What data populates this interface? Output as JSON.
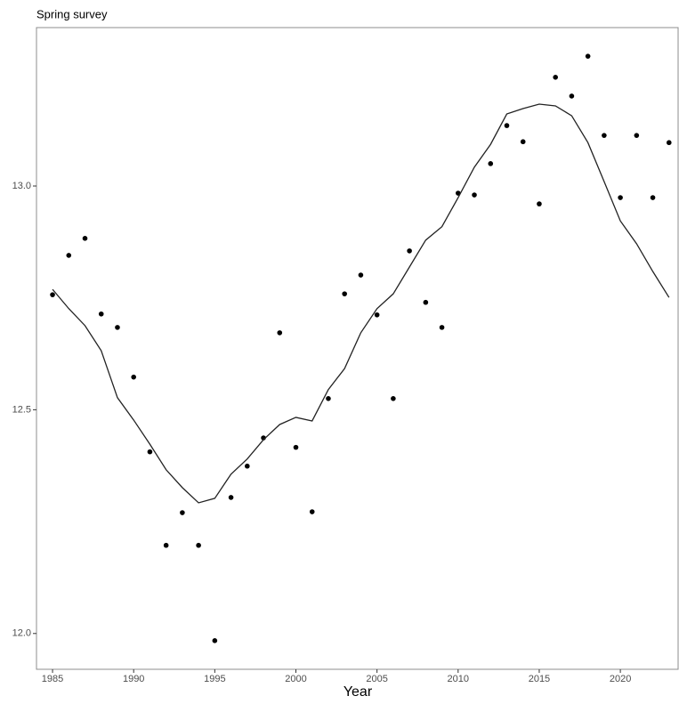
{
  "chart_data": {
    "type": "scatter",
    "title": "Spring survey",
    "x_label": "Year",
    "x": [
      1985,
      1986,
      1987,
      1988,
      1989,
      1990,
      1991,
      1992,
      1993,
      1994,
      1995,
      1996,
      1997,
      1998,
      1999,
      2000,
      2001,
      2002,
      2003,
      2004,
      2005,
      2006,
      2007,
      2008,
      2009,
      2010,
      2011,
      2012,
      2013,
      2014,
      2015,
      2016,
      2017,
      2018,
      2019,
      2020,
      2021,
      2022,
      2023
    ],
    "series": [
      {
        "mark": "point",
        "color": "#000000",
        "values": [
          12.757,
          12.845,
          12.883,
          12.714,
          12.684,
          12.573,
          12.406,
          12.197,
          12.27,
          12.197,
          11.984,
          12.304,
          12.374,
          12.437,
          12.672,
          12.416,
          12.272,
          12.525,
          12.759,
          12.801,
          12.712,
          12.525,
          12.855,
          12.74,
          12.684,
          12.984,
          12.98,
          13.05,
          13.135,
          13.099,
          12.96,
          13.243,
          13.201,
          13.29,
          13.113,
          12.974,
          13.113,
          12.974,
          13.097
        ]
      },
      {
        "mark": "line",
        "color": "#222222",
        "values": [
          12.769,
          12.726,
          12.688,
          12.632,
          12.527,
          12.477,
          12.423,
          12.366,
          12.326,
          12.292,
          12.302,
          12.356,
          12.39,
          12.433,
          12.467,
          12.483,
          12.475,
          12.545,
          12.592,
          12.672,
          12.726,
          12.759,
          12.819,
          12.879,
          12.909,
          12.974,
          13.042,
          13.093,
          13.161,
          13.173,
          13.183,
          13.179,
          13.157,
          13.097,
          13.01,
          12.922,
          12.871,
          12.809,
          12.751
        ]
      }
    ],
    "xlim": [
      1984.01,
      2023.56
    ],
    "xticks": [
      1985,
      1990,
      1995,
      2000,
      2005,
      2010,
      2015,
      2020
    ],
    "ylim": [
      11.92,
      13.354
    ],
    "yticks": [
      {
        "value": 12,
        "label": "12.0"
      },
      {
        "value": 12.5,
        "label": "12.5"
      },
      {
        "value": 13,
        "label": "13.0"
      }
    ]
  }
}
